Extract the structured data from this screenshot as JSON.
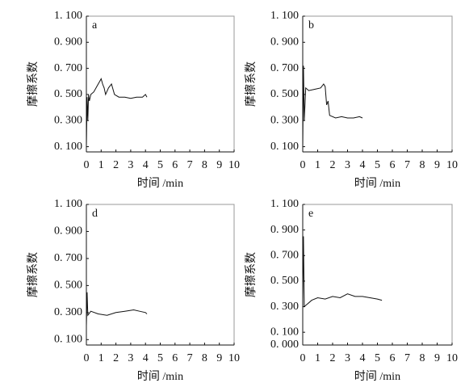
{
  "chart_data": [
    {
      "type": "line",
      "panel": "a",
      "xlabel": "时间 /min",
      "ylabel": "摩擦系数",
      "color": "#111",
      "x": [
        0,
        0.05,
        0.1,
        0.15,
        0.2,
        0.3,
        0.5,
        0.7,
        0.9,
        1.0,
        1.1,
        1.2,
        1.3,
        1.5,
        1.7,
        1.9,
        2.2,
        2.6,
        3.0,
        3.4,
        3.8,
        4.0,
        4.1
      ],
      "values": [
        0.1,
        0.48,
        0.3,
        0.5,
        0.45,
        0.5,
        0.52,
        0.56,
        0.6,
        0.62,
        0.58,
        0.55,
        0.5,
        0.55,
        0.58,
        0.5,
        0.48,
        0.48,
        0.47,
        0.48,
        0.48,
        0.5,
        0.48
      ],
      "xlim": [
        0,
        10
      ],
      "xticks": [
        0,
        1,
        2,
        3,
        4,
        5,
        6,
        7,
        8,
        9,
        10
      ],
      "ylim": [
        0.06,
        1.1
      ],
      "yticks": [
        {
          "value": 0.1,
          "label": "0. 100"
        },
        {
          "value": 0.3,
          "label": "0. 300"
        },
        {
          "value": 0.5,
          "label": "0. 500"
        },
        {
          "value": 0.7,
          "label": "0. 700"
        },
        {
          "value": 0.9,
          "label": "0. 900"
        },
        {
          "value": 1.1,
          "label": "1. 100"
        }
      ]
    },
    {
      "type": "line",
      "panel": "b",
      "xlabel": "时间 /min",
      "ylabel": "摩擦系数",
      "color": "#111",
      "x": [
        0,
        0.05,
        0.1,
        0.2,
        0.4,
        0.8,
        1.2,
        1.4,
        1.5,
        1.6,
        1.7,
        1.8,
        2.2,
        2.6,
        3.0,
        3.4,
        3.8,
        4.0
      ],
      "values": [
        0.07,
        0.72,
        0.3,
        0.55,
        0.53,
        0.54,
        0.55,
        0.58,
        0.56,
        0.42,
        0.45,
        0.34,
        0.32,
        0.33,
        0.32,
        0.32,
        0.33,
        0.32
      ],
      "xlim": [
        0,
        10
      ],
      "xticks": [
        0,
        1,
        2,
        3,
        4,
        5,
        6,
        7,
        8,
        9,
        10
      ],
      "ylim": [
        0.06,
        1.1
      ],
      "yticks": [
        {
          "value": 0.1,
          "label": "0. 100"
        },
        {
          "value": 0.3,
          "label": "0. 300"
        },
        {
          "value": 0.5,
          "label": "0. 500"
        },
        {
          "value": 0.7,
          "label": "0. 700"
        },
        {
          "value": 0.9,
          "label": "0. 900"
        },
        {
          "value": 1.1,
          "label": "1. 100"
        }
      ]
    },
    {
      "type": "line",
      "panel": "d",
      "xlabel": "时间 /min",
      "ylabel": "摩擦系数",
      "color": "#111",
      "x": [
        0,
        0.05,
        0.1,
        0.3,
        0.8,
        1.4,
        2.0,
        2.6,
        3.2,
        3.6,
        4.0,
        4.1
      ],
      "values": [
        0.2,
        0.45,
        0.28,
        0.31,
        0.29,
        0.28,
        0.3,
        0.31,
        0.32,
        0.31,
        0.3,
        0.29
      ],
      "xlim": [
        0,
        10
      ],
      "xticks": [
        0,
        1,
        2,
        3,
        4,
        5,
        6,
        7,
        8,
        9,
        10
      ],
      "ylim": [
        0.06,
        1.1
      ],
      "yticks": [
        {
          "value": 0.1,
          "label": "0. 100"
        },
        {
          "value": 0.3,
          "label": "0. 300"
        },
        {
          "value": 0.5,
          "label": "0. 500"
        },
        {
          "value": 0.7,
          "label": "0. 700"
        },
        {
          "value": 0.9,
          "label": "0. 900"
        },
        {
          "value": 1.1,
          "label": "1. 100"
        }
      ]
    },
    {
      "type": "line",
      "panel": "e",
      "xlabel": "时间 /min",
      "ylabel": "摩擦系数",
      "color": "#111",
      "x": [
        0,
        0.05,
        0.1,
        0.3,
        0.6,
        1.0,
        1.5,
        2.0,
        2.5,
        3.0,
        3.5,
        4.0,
        4.5,
        5.0,
        5.3
      ],
      "values": [
        0.35,
        0.85,
        0.3,
        0.32,
        0.35,
        0.37,
        0.36,
        0.38,
        0.37,
        0.4,
        0.38,
        0.38,
        0.37,
        0.36,
        0.35
      ],
      "xlim": [
        0,
        10
      ],
      "xticks": [
        0,
        1,
        2,
        3,
        4,
        5,
        6,
        7,
        8,
        9,
        10
      ],
      "ylim": [
        0,
        1.1
      ],
      "yticks": [
        {
          "value": 0,
          "label": "0. 000"
        },
        {
          "value": 0.1,
          "label": "0. 100"
        },
        {
          "value": 0.3,
          "label": "0. 300"
        },
        {
          "value": 0.5,
          "label": "0. 500"
        },
        {
          "value": 0.7,
          "label": "0. 700"
        },
        {
          "value": 0.9,
          "label": "0. 900"
        },
        {
          "value": 1.1,
          "label": "1. 100"
        }
      ]
    }
  ]
}
